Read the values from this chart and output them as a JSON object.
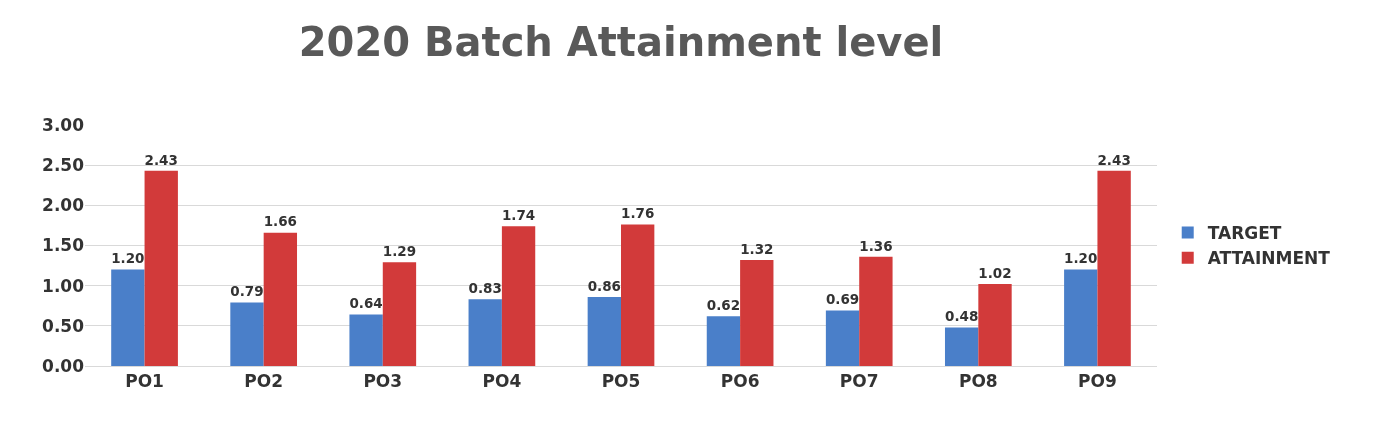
{
  "chart_data": {
    "type": "bar",
    "title": "2020 Batch Attainment level",
    "categories": [
      "PO1",
      "PO2",
      "PO3",
      "PO4",
      "PO5",
      "PO6",
      "PO7",
      "PO8",
      "PO9"
    ],
    "series": [
      {
        "name": "TARGET",
        "color": "#4a7fc9",
        "values": [
          1.2,
          0.79,
          0.64,
          0.83,
          0.86,
          0.62,
          0.69,
          0.48,
          1.2
        ],
        "value_labels": [
          "1.20",
          "0.79",
          "0.64",
          "0.83",
          "0.86",
          "0.62",
          "0.69",
          "0.48",
          "1.20"
        ]
      },
      {
        "name": "ATTAINMENT",
        "color": "#d23a3a",
        "values": [
          2.43,
          1.66,
          1.29,
          1.74,
          1.76,
          1.32,
          1.36,
          1.02,
          2.43
        ],
        "value_labels": [
          "2.43",
          "1.66",
          "1.29",
          "1.74",
          "1.76",
          "1.32",
          "1.36",
          "1.02",
          "2.43"
        ]
      }
    ],
    "ylim": [
      0,
      3
    ],
    "yticks": [
      {
        "value": 0,
        "label": "0.00"
      },
      {
        "value": 0.5,
        "label": "0.50"
      },
      {
        "value": 1,
        "label": "1.00"
      },
      {
        "value": 1.5,
        "label": "1.50"
      },
      {
        "value": 2,
        "label": "2.00"
      },
      {
        "value": 2.5,
        "label": "2.50"
      },
      {
        "value": 3,
        "label": "3.00"
      }
    ],
    "grid": "y",
    "legend": "right"
  }
}
